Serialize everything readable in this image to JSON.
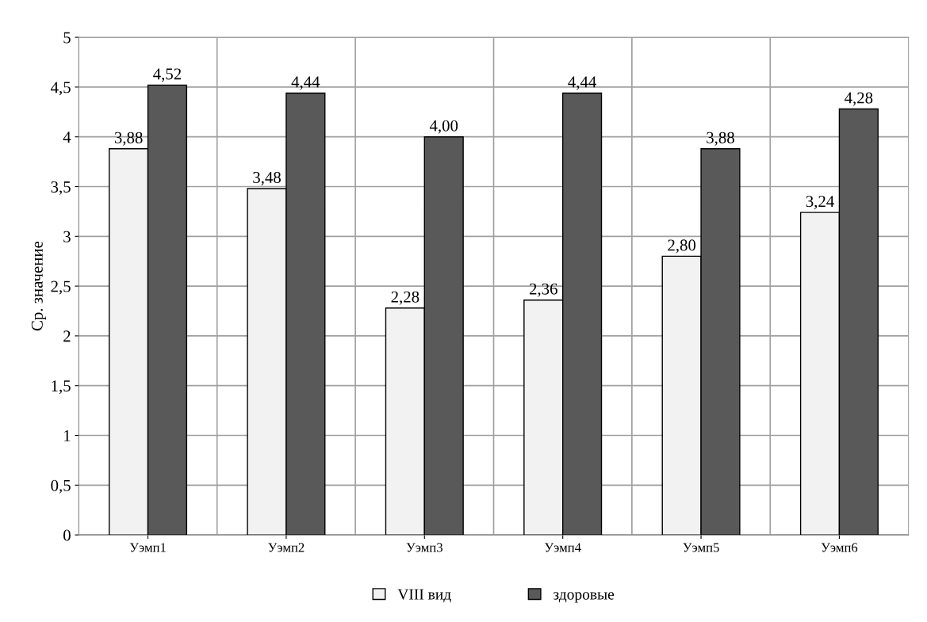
{
  "chart_data": {
    "type": "bar",
    "ylabel": "Ср. значение",
    "categories": [
      "Уэмп1",
      "Уэмп2",
      "Уэмп3",
      "Уэмп4",
      "Уэмп5",
      "Уэмп6"
    ],
    "series": [
      {
        "name": "VIII вид",
        "color": "#f2f2f2",
        "values": [
          3.88,
          3.48,
          2.28,
          2.36,
          2.8,
          3.24
        ],
        "value_labels": [
          "3,88",
          "3,48",
          "2,28",
          "2,36",
          "2,80",
          "3,24"
        ]
      },
      {
        "name": "здоровые",
        "color": "#595959",
        "values": [
          4.52,
          4.44,
          4.0,
          4.44,
          3.88,
          4.28
        ],
        "value_labels": [
          "4,52",
          "4,44",
          "4,00",
          "4,44",
          "3,88",
          "4,28"
        ]
      }
    ],
    "ylim": [
      0,
      5
    ],
    "yticks": [
      0,
      {
        "value": 0.5,
        "label": "0,5"
      },
      1,
      {
        "value": 1.5,
        "label": "1,5"
      },
      2,
      {
        "value": 2.5,
        "label": "2,5"
      },
      3,
      {
        "value": 3.5,
        "label": "3,5"
      },
      4,
      {
        "value": 4.5,
        "label": "4,5"
      },
      5
    ],
    "grid": true,
    "legend": "bottom"
  }
}
